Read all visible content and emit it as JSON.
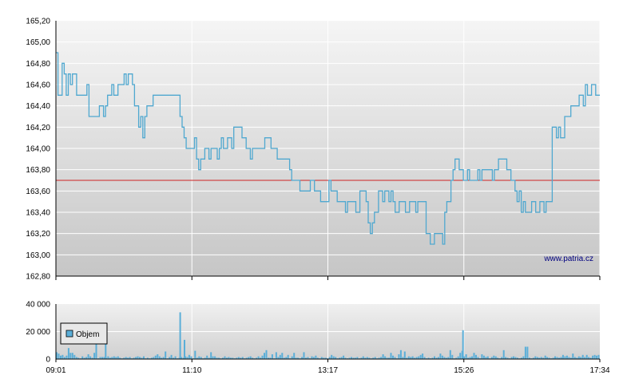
{
  "chart_data": [
    {
      "type": "line",
      "name": "price",
      "ylim": [
        162.8,
        165.2
      ],
      "y_ticks": [
        "165,20",
        "165,00",
        "164,80",
        "164,60",
        "164,40",
        "164,20",
        "164,00",
        "163,80",
        "163,60",
        "163,40",
        "163,20",
        "163,00",
        "162,80"
      ],
      "reference_line": 163.7,
      "x_ticks": [
        "09:01",
        "11:10",
        "13:17",
        "15:26",
        "17:34"
      ],
      "series": [
        {
          "values": [
            164.9,
            164.5,
            164.5,
            164.8,
            164.7,
            164.5,
            164.7,
            164.6,
            164.7,
            164.7,
            164.5,
            164.5,
            164.5,
            164.5,
            164.5,
            164.6,
            164.3,
            164.3,
            164.3,
            164.3,
            164.3,
            164.4,
            164.4,
            164.3,
            164.4,
            164.5,
            164.5,
            164.6,
            164.5,
            164.5,
            164.6,
            164.6,
            164.6,
            164.7,
            164.6,
            164.7,
            164.7,
            164.6,
            164.4,
            164.4,
            164.2,
            164.3,
            164.1,
            164.3,
            164.4,
            164.4,
            164.4,
            164.5,
            164.5,
            164.5,
            164.5,
            164.5,
            164.5,
            164.5,
            164.5,
            164.5,
            164.5,
            164.5,
            164.5,
            164.5,
            164.3,
            164.2,
            164.1,
            164.0,
            164.0,
            164.0,
            164.0,
            164.1,
            163.9,
            163.8,
            163.9,
            163.9,
            164.0,
            164.0,
            163.9,
            164.0,
            164.0,
            164.0,
            163.9,
            164.0,
            164.1,
            164.0,
            164.0,
            164.1,
            164.1,
            164.0,
            164.2,
            164.2,
            164.2,
            164.2,
            164.1,
            164.1,
            164.0,
            164.0,
            163.9,
            164.0,
            164.0,
            164.0,
            164.0,
            164.0,
            164.0,
            164.1,
            164.1,
            164.1,
            164.0,
            164.0,
            164.0,
            163.9,
            163.9,
            163.9,
            163.9,
            163.9,
            163.9,
            163.8,
            163.7,
            163.7,
            163.7,
            163.7,
            163.6,
            163.6,
            163.6,
            163.6,
            163.6,
            163.7,
            163.7,
            163.6,
            163.6,
            163.6,
            163.5,
            163.5,
            163.5,
            163.5,
            163.7,
            163.6,
            163.6,
            163.6,
            163.5,
            163.5,
            163.5,
            163.5,
            163.4,
            163.5,
            163.5,
            163.5,
            163.5,
            163.4,
            163.4,
            163.6,
            163.6,
            163.6,
            163.5,
            163.3,
            163.2,
            163.3,
            163.4,
            163.4,
            163.6,
            163.6,
            163.5,
            163.6,
            163.6,
            163.5,
            163.6,
            163.5,
            163.4,
            163.4,
            163.5,
            163.5,
            163.5,
            163.4,
            163.4,
            163.5,
            163.5,
            163.5,
            163.4,
            163.5,
            163.5,
            163.5,
            163.5,
            163.2,
            163.2,
            163.1,
            163.1,
            163.2,
            163.2,
            163.2,
            163.2,
            163.1,
            163.4,
            163.5,
            163.5,
            163.7,
            163.8,
            163.9,
            163.9,
            163.8,
            163.8,
            163.7,
            163.7,
            163.8,
            163.7,
            163.7,
            163.7,
            163.7,
            163.8,
            163.7,
            163.8,
            163.8,
            163.8,
            163.8,
            163.8,
            163.7,
            163.8,
            163.8,
            163.9,
            163.9,
            163.9,
            163.9,
            163.8,
            163.8,
            163.7,
            163.7,
            163.6,
            163.5,
            163.6,
            163.4,
            163.5,
            163.4,
            163.4,
            163.4,
            163.5,
            163.5,
            163.4,
            163.4,
            163.5,
            163.5,
            163.4,
            163.5,
            163.5,
            163.5,
            164.2,
            164.2,
            164.1,
            164.2,
            164.1,
            164.1,
            164.3,
            164.3,
            164.3,
            164.4,
            164.4,
            164.4,
            164.4,
            164.5,
            164.5,
            164.4,
            164.6,
            164.5,
            164.5,
            164.6,
            164.6,
            164.5,
            164.5
          ]
        }
      ]
    },
    {
      "type": "bar",
      "name": "volume",
      "ylim": [
        0,
        40000
      ],
      "y_ticks": [
        "40 000",
        "20 000",
        "0"
      ],
      "x_ticks": [
        "09:01",
        "11:10",
        "13:17",
        "15:26",
        "17:34"
      ],
      "legend": [
        "Objem"
      ],
      "values": [
        5000,
        4000,
        2500,
        3000,
        1500,
        2500,
        8000,
        4500,
        4500,
        3000,
        1500,
        1000,
        500,
        2000,
        1000,
        1500,
        3500,
        2000,
        1000,
        4500,
        11000,
        500,
        1500,
        1500,
        1500,
        1000,
        2000,
        1000,
        1500,
        2000,
        1500,
        2000,
        1000,
        500,
        1000,
        1500,
        1000,
        1500,
        500,
        1000,
        1500,
        2000,
        1500,
        1000,
        2000,
        500,
        1000,
        500,
        1000,
        1500,
        2500,
        3500,
        2000,
        1000,
        1500,
        5500,
        500,
        1500,
        3000,
        1000,
        2000,
        500,
        1000,
        1500,
        1000,
        2000,
        1500,
        3000,
        2000,
        500,
        6000,
        1000,
        2000,
        1500,
        500,
        1000,
        2500,
        1000,
        5000,
        2000,
        2000,
        1000,
        1000,
        500,
        1000,
        2000,
        1000,
        1500,
        1000,
        1000,
        500,
        1000,
        1500,
        1000,
        1500,
        500,
        1000,
        1500,
        2000,
        1000,
        500,
        1000,
        2000,
        1000,
        2500,
        4500,
        6500,
        1000,
        1000,
        3500,
        500,
        5000,
        1500,
        3000,
        4500,
        1000,
        1500,
        3000,
        500,
        2000,
        4500,
        1000,
        1000,
        500,
        1500,
        5000,
        1000,
        1500,
        500,
        2000,
        1500,
        2500,
        1000,
        500,
        1500,
        1000,
        1000,
        500,
        1500,
        3000,
        2000,
        1500,
        500,
        1000,
        1500,
        2500,
        1000,
        500,
        1000,
        1500,
        1000,
        1000,
        1500,
        500,
        1000,
        2000,
        1000,
        1500,
        1000,
        500,
        1000,
        1500,
        500,
        1000,
        1500,
        3500,
        2000,
        1000,
        1000,
        4500,
        2500,
        1500,
        500,
        3500,
        6500,
        1500,
        5500,
        1000,
        2000,
        1500,
        2000,
        1000,
        1500,
        2000,
        3000,
        4000,
        1500,
        500,
        1000,
        500,
        1000,
        2000,
        1000,
        1500,
        4000,
        2500,
        1500,
        1000,
        1500,
        6500,
        3000,
        500,
        1000,
        2000,
        4500,
        6000,
        2000,
        3500,
        1000,
        1500,
        2000,
        4500,
        3000,
        1500,
        500,
        3500,
        2500,
        1500,
        2000,
        500,
        1500,
        2500,
        2000,
        1000,
        500,
        1500,
        6500,
        1500,
        1000,
        500,
        1500,
        2000,
        1500,
        1000,
        500,
        1000,
        2000,
        9000,
        9000,
        1000,
        500,
        1000,
        2000,
        1500,
        1000,
        1500,
        1000,
        2500,
        1500,
        1000,
        500,
        1000,
        2000,
        1500,
        1000,
        1500,
        3000,
        2000,
        2500,
        1500,
        1000,
        4000,
        1500,
        1000,
        2000,
        1500,
        3000,
        1500,
        3000,
        1500,
        1000,
        2500,
        3000,
        2500,
        3000
      ],
      "spikes": [
        {
          "position": 0.227,
          "value": 34000
        },
        {
          "position": 0.235,
          "value": 14000
        },
        {
          "position": 0.747,
          "value": 21000
        },
        {
          "position": 0.09,
          "value": 11000
        }
      ]
    }
  ],
  "watermark": "www.patria.cz",
  "colors": {
    "line": "#4fa8d0",
    "bar": "#5aaed8",
    "reference": "#cc2222",
    "grid": "#ffffff",
    "bg_top": "#f4f4f4",
    "bg_bottom": "#c4c4c4",
    "axis": "#000000"
  }
}
